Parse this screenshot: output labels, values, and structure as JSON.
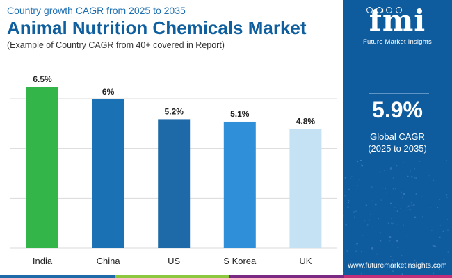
{
  "header": {
    "subtitle": "Country growth CAGR from 2025 to 2035",
    "title": "Animal Nutrition Chemicals Market",
    "note": "(Example of Country CAGR from 40+ covered in Report)"
  },
  "chart_data": {
    "type": "bar",
    "categories": [
      "India",
      "China",
      "US",
      "S Korea",
      "UK"
    ],
    "values": [
      6.5,
      6,
      5.2,
      5.1,
      4.8
    ],
    "value_labels": [
      "6.5%",
      "6%",
      "5.2%",
      "5.1%",
      "4.8%"
    ],
    "colors": [
      "#33b54a",
      "#1a72b4",
      "#1e6aa9",
      "#2f8fd8",
      "#c5e2f5"
    ],
    "ylim": [
      0,
      6.6
    ],
    "grid": true
  },
  "panel": {
    "logo_letters": "fmi",
    "logo_text": "Future Market Insights",
    "kpi_value": "5.9%",
    "kpi_label_line1": "Global CAGR",
    "kpi_label_line2": "(2025 to 2035)",
    "url": "www.futuremarketinsights.com",
    "background": "#0e5c9e"
  },
  "bottom_bar_colors": [
    "#1e6aa9",
    "#8dc63f",
    "#7b2a83",
    "#c02e79"
  ]
}
